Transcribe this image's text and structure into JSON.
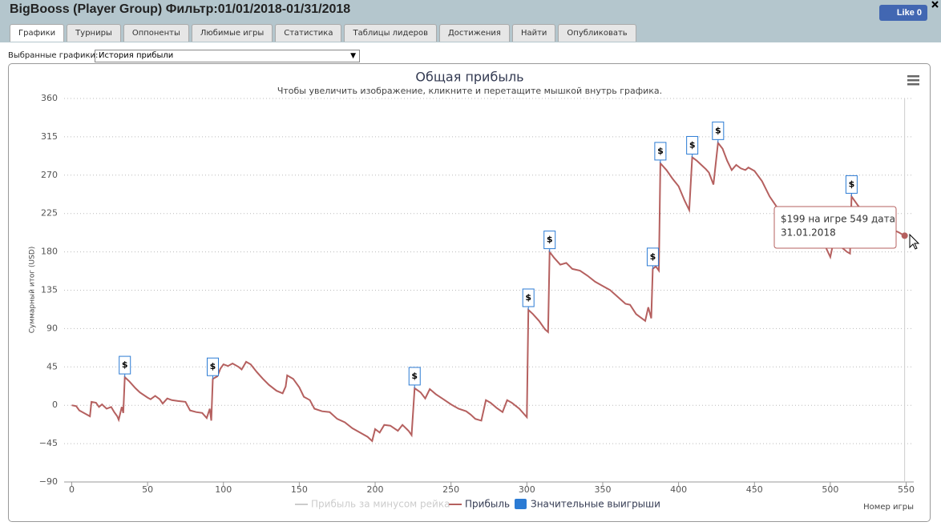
{
  "header": {
    "title": "BigBooss (Player Group) Фильтр:01/01/2018-01/31/2018",
    "like": "Like 0"
  },
  "tabs": [
    "Графики",
    "Турниры",
    "Оппоненты",
    "Любимые игры",
    "Статистика",
    "Таблицы лидеров",
    "Достижения",
    "Найти",
    "Опубликовать"
  ],
  "selector": {
    "label": "Выбранные графики:",
    "value": "История прибыли"
  },
  "chart_data": {
    "type": "line",
    "title": "Общая прибыль",
    "subtitle": "Чтобы увеличить изображение, кликните и перетащите мышкой внутрь графика.",
    "y_label": "Суммарный итог (USD)",
    "x_label": "Номер игры",
    "xlim": [
      -5,
      555
    ],
    "xticks": [
      0,
      50,
      100,
      150,
      200,
      250,
      300,
      350,
      400,
      450,
      500,
      550
    ],
    "ylim": [
      -90,
      360
    ],
    "yticks": [
      {
        "value": -90,
        "label": "−90"
      },
      {
        "value": -45,
        "label": "−45"
      },
      0,
      45,
      90,
      135,
      180,
      225,
      270,
      315,
      360
    ],
    "grid": true,
    "series": [
      {
        "name": "Прибыль за минусом рейка",
        "color": "#cccccc",
        "visible": false
      },
      {
        "name": "Прибыль",
        "color": "#b5605f",
        "visible": true,
        "x": [
          0,
          3,
          5,
          10,
          12,
          13,
          16,
          18,
          20,
          23,
          26,
          28,
          30,
          31,
          33,
          34,
          35,
          38,
          42,
          45,
          50,
          52,
          55,
          58,
          60,
          63,
          66,
          70,
          75,
          78,
          82,
          86,
          89,
          91,
          92,
          93,
          96,
          98,
          100,
          103,
          106,
          110,
          112,
          115,
          118,
          122,
          126,
          130,
          135,
          139,
          141,
          142,
          146,
          150,
          153,
          157,
          160,
          165,
          170,
          175,
          180,
          185,
          190,
          195,
          198,
          200,
          203,
          206,
          210,
          215,
          218,
          222,
          224,
          226,
          230,
          233,
          236,
          240,
          245,
          250,
          255,
          260,
          263,
          266,
          270,
          273,
          276,
          280,
          284,
          287,
          290,
          295,
          299,
          300,
          301,
          304,
          308,
          312,
          314,
          315,
          318,
          322,
          326,
          330,
          335,
          340,
          345,
          350,
          355,
          360,
          365,
          368,
          372,
          375,
          378,
          380,
          382,
          383,
          385,
          387,
          388,
          392,
          396,
          400,
          404,
          407,
          409,
          412,
          415,
          418,
          420,
          423,
          426,
          429,
          432,
          435,
          438,
          441,
          444,
          446,
          450,
          455,
          460,
          465,
          470,
          475,
          480,
          485,
          490,
          495,
          500,
          502,
          507,
          511,
          513,
          514,
          518,
          522,
          530,
          535,
          540,
          545,
          549
        ],
        "values": [
          0,
          -1,
          -6,
          -11,
          -13,
          4,
          3,
          -2,
          1,
          -4,
          -2,
          -8,
          -13,
          -17,
          -2,
          -9,
          33,
          28,
          20,
          15,
          9,
          7,
          11,
          7,
          2,
          8,
          6,
          5,
          4,
          -6,
          -8,
          -9,
          -15,
          -4,
          -18,
          31,
          34,
          43,
          48,
          46,
          49,
          45,
          42,
          51,
          48,
          39,
          31,
          24,
          17,
          14,
          22,
          35,
          31,
          21,
          10,
          6,
          -4,
          -7,
          -8,
          -16,
          -20,
          -27,
          -32,
          -37,
          -42,
          -28,
          -32,
          -23,
          -24,
          -30,
          -23,
          -30,
          -35,
          20,
          15,
          8,
          19,
          13,
          7,
          1,
          -4,
          -7,
          -11,
          -16,
          -18,
          6,
          3,
          -3,
          -8,
          6,
          3,
          -4,
          -12,
          -14,
          112,
          107,
          99,
          89,
          86,
          180,
          173,
          165,
          167,
          160,
          158,
          152,
          145,
          140,
          135,
          127,
          119,
          118,
          107,
          103,
          99,
          115,
          102,
          160,
          163,
          158,
          284,
          276,
          266,
          257,
          240,
          229,
          291,
          287,
          282,
          277,
          273,
          259,
          308,
          301,
          287,
          276,
          282,
          278,
          276,
          279,
          275,
          263,
          245,
          232,
          226,
          217,
          207,
          203,
          198,
          193,
          174,
          191,
          186,
          180,
          178,
          245,
          235,
          226,
          221,
          214,
          207,
          203,
          199
        ]
      },
      {
        "name": "Значительные выигрыши",
        "color": "#2b7bd4",
        "visible": true,
        "x": [
          35,
          93,
          226,
          301,
          315,
          383,
          388,
          409,
          426,
          514
        ],
        "values": [
          33,
          31,
          20,
          112,
          180,
          160,
          284,
          291,
          308,
          245
        ],
        "labels": [
          "$",
          "$",
          "$",
          "$",
          "$",
          "$",
          "$",
          "$",
          "$",
          "$"
        ]
      }
    ],
    "tooltip": "$199 на игре 549 дата\n31.01.2018"
  }
}
